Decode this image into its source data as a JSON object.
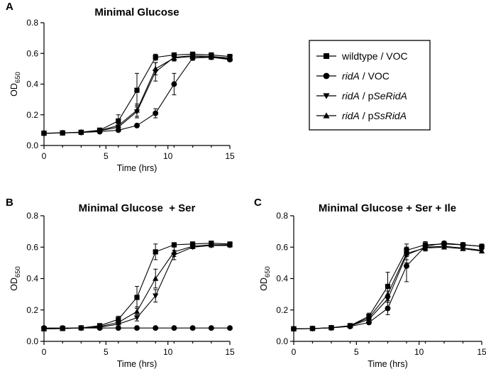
{
  "chart_data": [
    {
      "panel": "A",
      "type": "line",
      "title": "Minimal Glucose",
      "xlabel": "Time (hrs)",
      "ylabel": "OD",
      "ylabel_sub": "650",
      "xlim": [
        0,
        15
      ],
      "ylim": [
        0,
        0.8
      ],
      "xticks": [
        0,
        5,
        10,
        15
      ],
      "yticks": [
        0.0,
        0.2,
        0.4,
        0.6,
        0.8
      ],
      "x": [
        0,
        1.5,
        3,
        4.5,
        6,
        7.5,
        9,
        10.5,
        12,
        13.5,
        15
      ],
      "series": [
        {
          "name": "wildtype / VOC",
          "marker": "square",
          "values": [
            0.08,
            0.082,
            0.086,
            0.1,
            0.16,
            0.36,
            0.575,
            0.59,
            0.595,
            0.59,
            0.58
          ],
          "errors": [
            0.004,
            0.004,
            0.005,
            0.01,
            0.04,
            0.11,
            0.02,
            0.01,
            0.01,
            0.01,
            0.01
          ]
        },
        {
          "name": "ridA / VOC",
          "marker": "circle",
          "values": [
            0.08,
            0.082,
            0.085,
            0.09,
            0.1,
            0.13,
            0.21,
            0.4,
            0.57,
            0.575,
            0.56
          ],
          "errors": [
            0.004,
            0.004,
            0.004,
            0.005,
            0.01,
            0.01,
            0.03,
            0.07,
            0.015,
            0.01,
            0.01
          ]
        },
        {
          "name": "ridA / pSeRidA",
          "marker": "triangle-down",
          "values": [
            0.08,
            0.082,
            0.086,
            0.095,
            0.12,
            0.22,
            0.48,
            0.575,
            0.585,
            0.58,
            0.57
          ],
          "errors": [
            0.004,
            0.004,
            0.004,
            0.006,
            0.02,
            0.04,
            0.06,
            0.02,
            0.01,
            0.01,
            0.01
          ]
        },
        {
          "name": "ridA / pSsRidA",
          "marker": "triangle-up",
          "values": [
            0.08,
            0.082,
            0.087,
            0.098,
            0.13,
            0.23,
            0.5,
            0.57,
            0.58,
            0.575,
            0.565
          ],
          "errors": [
            0.004,
            0.004,
            0.004,
            0.006,
            0.02,
            0.04,
            0.04,
            0.02,
            0.01,
            0.01,
            0.01
          ]
        }
      ]
    },
    {
      "panel": "B",
      "type": "line",
      "title": "Minimal Glucose  + Ser",
      "xlabel": "Time (hrs)",
      "ylabel": "OD",
      "ylabel_sub": "650",
      "xlim": [
        0,
        15
      ],
      "ylim": [
        0,
        0.8
      ],
      "xticks": [
        0,
        5,
        10,
        15
      ],
      "yticks": [
        0.0,
        0.2,
        0.4,
        0.6,
        0.8
      ],
      "x": [
        0,
        1.5,
        3,
        4.5,
        6,
        7.5,
        9,
        10.5,
        12,
        13.5,
        15
      ],
      "series": [
        {
          "name": "wildtype / VOC",
          "marker": "square",
          "values": [
            0.08,
            0.082,
            0.086,
            0.1,
            0.14,
            0.28,
            0.57,
            0.615,
            0.62,
            0.625,
            0.62
          ],
          "errors": [
            0.004,
            0.004,
            0.005,
            0.01,
            0.02,
            0.07,
            0.05,
            0.01,
            0.01,
            0.01,
            0.01
          ]
        },
        {
          "name": "ridA / VOC",
          "marker": "circle",
          "values": [
            0.085,
            0.085,
            0.085,
            0.085,
            0.085,
            0.085,
            0.085,
            0.085,
            0.085,
            0.085,
            0.085
          ],
          "errors": [
            0.003,
            0.003,
            0.003,
            0.003,
            0.003,
            0.003,
            0.003,
            0.003,
            0.003,
            0.003,
            0.003
          ]
        },
        {
          "name": "ridA / pSeRidA",
          "marker": "triangle-down",
          "values": [
            0.08,
            0.082,
            0.085,
            0.09,
            0.11,
            0.15,
            0.29,
            0.55,
            0.6,
            0.61,
            0.61
          ],
          "errors": [
            0.004,
            0.004,
            0.004,
            0.005,
            0.01,
            0.02,
            0.04,
            0.03,
            0.01,
            0.01,
            0.01
          ]
        },
        {
          "name": "ridA / pSsRidA",
          "marker": "triangle-up",
          "values": [
            0.08,
            0.082,
            0.086,
            0.095,
            0.12,
            0.19,
            0.4,
            0.57,
            0.605,
            0.615,
            0.615
          ],
          "errors": [
            0.004,
            0.004,
            0.004,
            0.005,
            0.01,
            0.03,
            0.06,
            0.03,
            0.01,
            0.01,
            0.01
          ]
        }
      ]
    },
    {
      "panel": "C",
      "type": "line",
      "title": "Minimal Glucose + Ser + Ile",
      "xlabel": "Time (hrs)",
      "ylabel": "OD",
      "ylabel_sub": "650",
      "xlim": [
        0,
        15
      ],
      "ylim": [
        0,
        0.8
      ],
      "xticks": [
        0,
        5,
        10,
        15
      ],
      "yticks": [
        0.0,
        0.2,
        0.4,
        0.6,
        0.8
      ],
      "x": [
        0,
        1.5,
        3,
        4.5,
        6,
        7.5,
        9,
        10.5,
        12,
        13.5,
        15
      ],
      "series": [
        {
          "name": "wildtype / VOC",
          "marker": "square",
          "values": [
            0.08,
            0.082,
            0.087,
            0.1,
            0.16,
            0.35,
            0.58,
            0.615,
            0.62,
            0.615,
            0.605
          ],
          "errors": [
            0.004,
            0.004,
            0.005,
            0.01,
            0.02,
            0.09,
            0.04,
            0.02,
            0.01,
            0.01,
            0.01
          ]
        },
        {
          "name": "ridA / VOC",
          "marker": "circle",
          "values": [
            0.08,
            0.082,
            0.086,
            0.095,
            0.12,
            0.21,
            0.48,
            0.605,
            0.625,
            0.615,
            0.605
          ],
          "errors": [
            0.004,
            0.004,
            0.004,
            0.006,
            0.01,
            0.04,
            0.1,
            0.02,
            0.01,
            0.01,
            0.01
          ]
        },
        {
          "name": "ridA / pSeRidA",
          "marker": "triangle-down",
          "values": [
            0.08,
            0.082,
            0.086,
            0.098,
            0.14,
            0.27,
            0.55,
            0.6,
            0.605,
            0.595,
            0.58
          ],
          "errors": [
            0.004,
            0.004,
            0.004,
            0.006,
            0.02,
            0.05,
            0.05,
            0.02,
            0.01,
            0.01,
            0.01
          ]
        },
        {
          "name": "ridA / pSsRidA",
          "marker": "triangle-up",
          "values": [
            0.08,
            0.082,
            0.087,
            0.1,
            0.15,
            0.3,
            0.56,
            0.595,
            0.6,
            0.59,
            0.575
          ],
          "errors": [
            0.004,
            0.004,
            0.005,
            0.006,
            0.02,
            0.05,
            0.04,
            0.02,
            0.01,
            0.01,
            0.01
          ]
        }
      ]
    }
  ],
  "legend": {
    "entries": [
      {
        "marker": "square",
        "parts": [
          {
            "text": "wildtype / VOC",
            "italic": false
          }
        ]
      },
      {
        "marker": "circle",
        "parts": [
          {
            "text": "ridA",
            "italic": true
          },
          {
            "text": " / VOC",
            "italic": false
          }
        ]
      },
      {
        "marker": "triangle-down",
        "parts": [
          {
            "text": "ridA",
            "italic": true
          },
          {
            "text": " / p",
            "italic": false
          },
          {
            "text": "SeRidA",
            "italic": true
          }
        ]
      },
      {
        "marker": "triangle-up",
        "parts": [
          {
            "text": "ridA",
            "italic": true
          },
          {
            "text": " / p",
            "italic": false
          },
          {
            "text": "SsRidA",
            "italic": true
          }
        ]
      }
    ]
  }
}
